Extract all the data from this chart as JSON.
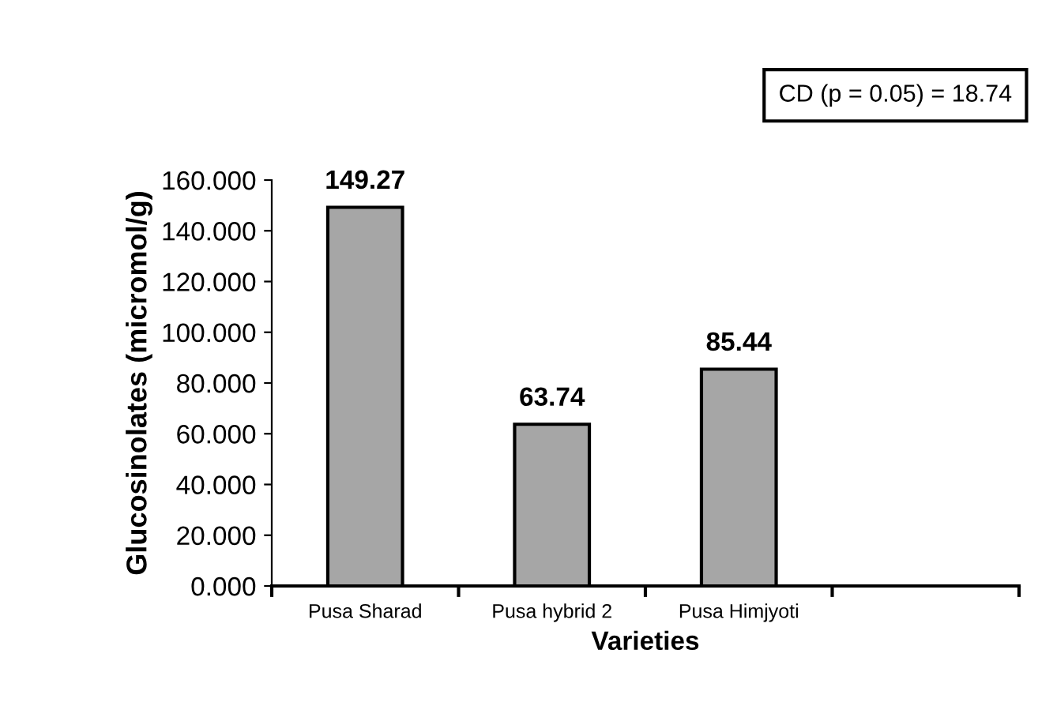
{
  "chart_data": {
    "type": "bar",
    "xlabel": "Varieties",
    "ylabel": "Glucosinolates (micromol/g)",
    "categories": [
      "Pusa Sharad",
      "Pusa hybrid 2",
      "Pusa Himjyoti",
      null
    ],
    "values": [
      149.27,
      63.74,
      85.44,
      null
    ],
    "color": "#a6a6a6",
    "ylim": [
      0,
      160
    ],
    "yticks": [
      {
        "value": 0,
        "label": "0.000"
      },
      {
        "value": 20,
        "label": "20.000"
      },
      {
        "value": 40,
        "label": "40.000"
      },
      {
        "value": 60,
        "label": "60.000"
      },
      {
        "value": 80,
        "label": "80.000"
      },
      {
        "value": 100,
        "label": "100.000"
      },
      {
        "value": 120,
        "label": "120.000"
      },
      {
        "value": 140,
        "label": "140.000"
      },
      {
        "value": 160,
        "label": "160.000"
      }
    ],
    "data_labels": true,
    "grid": false,
    "annotations": [
      "CD (p = 0.05) = 18.74"
    ]
  }
}
